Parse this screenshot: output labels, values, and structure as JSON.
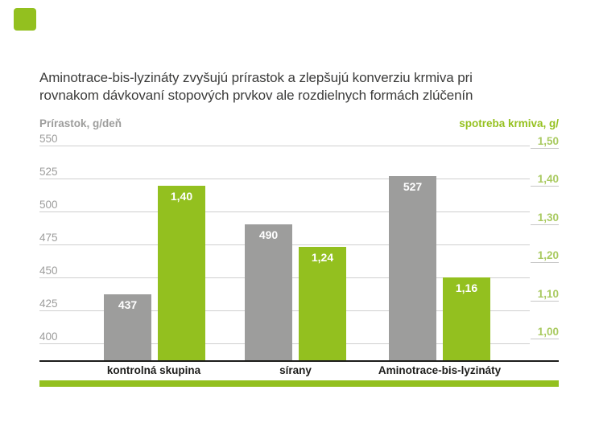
{
  "title": {
    "line1": "Aminotrace-bis-lyzináty zvyšujú prírastok a zlepšujú konverziu krmiva pri",
    "line2": "rovnakom dávkovaní stopových prvkov ale rozdielnych formách zlúčenín"
  },
  "colors": {
    "bar_green": "#93C01F",
    "bar_gray": "#9D9D9C",
    "right_axis_title_green": "#95C11F",
    "right_tick_green": "#A9CA60",
    "left_tick_gray": "#9D9D9C",
    "gridline_gray": "#CFCFCF",
    "axis_black": "#1D1D1B",
    "title_text": "#3C3C3B",
    "value_label_white": "#FFFFFF"
  },
  "chart_data": {
    "type": "bar",
    "categories": [
      "kontrolná skupina",
      "sírany",
      "Aminotrace-bis-lyzináty"
    ],
    "series": [
      {
        "name": "Prírastok, g/deň",
        "axis": "left",
        "color": "#9D9D9C",
        "values": [
          437,
          490,
          527
        ],
        "labels": [
          "437",
          "490",
          "527"
        ]
      },
      {
        "name": "spotreba krmiva, g/",
        "axis": "right",
        "color": "#93C01F",
        "values": [
          1.4,
          1.24,
          1.16
        ],
        "labels": [
          "1,40",
          "1,24",
          "1,16"
        ]
      }
    ],
    "left_axis": {
      "title": "Prírastok, g/deň",
      "min": 400,
      "max": 550,
      "tick_step": 25,
      "ticks": [
        "550",
        "525",
        "500",
        "475",
        "450",
        "425",
        "400"
      ]
    },
    "right_axis": {
      "title": "spotreba krmiva, g/",
      "min": 1.0,
      "max": 1.5,
      "tick_step": 0.1,
      "ticks": [
        "1,50",
        "1,40",
        "1,30",
        "1,20",
        "1,10",
        "1,00"
      ]
    },
    "grid": true,
    "legend": "none"
  }
}
